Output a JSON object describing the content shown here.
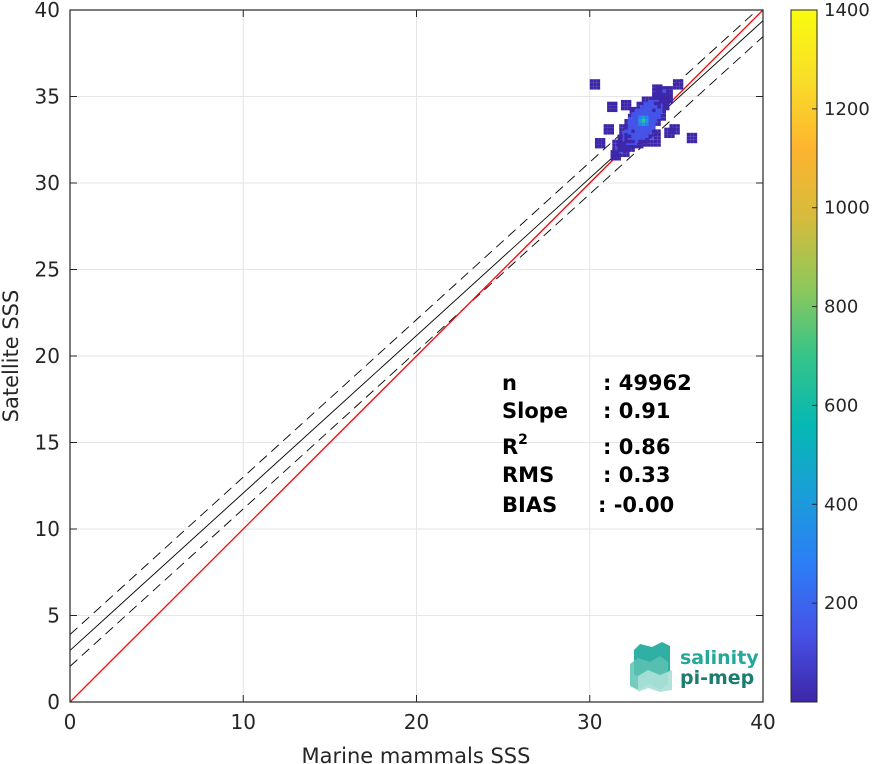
{
  "chart_data": {
    "type": "scatter",
    "subtype": "2d-density-histogram",
    "xlabel": "Marine mammals SSS",
    "ylabel": "Satellite SSS",
    "xlim": [
      0,
      40
    ],
    "ylim": [
      0,
      40
    ],
    "xticks": [
      0,
      10,
      20,
      30,
      40
    ],
    "yticks": [
      0,
      5,
      10,
      15,
      20,
      25,
      30,
      35,
      40
    ],
    "grid": true,
    "colorbar": {
      "range": [
        0,
        1400
      ],
      "ticks": [
        200,
        400,
        600,
        800,
        1000,
        1200,
        1400
      ],
      "colormap": "parula",
      "colors": [
        "#3e26a8",
        "#4653e8",
        "#2c7ef7",
        "#1a9ed9",
        "#06b8b3",
        "#35c489",
        "#8fc85a",
        "#d6bb3c",
        "#fdb42f",
        "#f9de29",
        "#f9fb0e"
      ]
    },
    "density_points": [
      {
        "x": 35.0,
        "y": 35.6,
        "count": 40
      },
      {
        "x": 34.2,
        "y": 35.0,
        "count": 120
      },
      {
        "x": 34.0,
        "y": 34.6,
        "count": 220
      },
      {
        "x": 33.6,
        "y": 34.2,
        "count": 380
      },
      {
        "x": 33.3,
        "y": 33.9,
        "count": 520
      },
      {
        "x": 33.0,
        "y": 33.5,
        "count": 700
      },
      {
        "x": 32.8,
        "y": 33.2,
        "count": 620
      },
      {
        "x": 32.6,
        "y": 32.9,
        "count": 480
      },
      {
        "x": 32.3,
        "y": 32.6,
        "count": 320
      },
      {
        "x": 32.0,
        "y": 32.2,
        "count": 200
      },
      {
        "x": 31.7,
        "y": 31.9,
        "count": 120
      },
      {
        "x": 31.4,
        "y": 31.5,
        "count": 60
      },
      {
        "x": 32.0,
        "y": 34.4,
        "count": 30
      },
      {
        "x": 31.2,
        "y": 34.3,
        "count": 20
      },
      {
        "x": 31.0,
        "y": 33.0,
        "count": 15
      },
      {
        "x": 34.5,
        "y": 32.8,
        "count": 40
      },
      {
        "x": 34.8,
        "y": 33.0,
        "count": 25
      },
      {
        "x": 33.5,
        "y": 32.5,
        "count": 90
      },
      {
        "x": 32.5,
        "y": 34.0,
        "count": 80
      },
      {
        "x": 33.8,
        "y": 35.3,
        "count": 40
      },
      {
        "x": 35.8,
        "y": 32.5,
        "count": 10
      },
      {
        "x": 30.2,
        "y": 35.6,
        "count": 8
      },
      {
        "x": 30.5,
        "y": 32.2,
        "count": 10
      }
    ],
    "lines": {
      "identity": {
        "slope": 1.0,
        "intercept": 0.0,
        "color": "#ff0000"
      },
      "regression": {
        "slope": 0.91,
        "intercept": 2.98,
        "color": "#000000"
      },
      "regression_plus": {
        "slope": 0.91,
        "intercept": 3.9,
        "color": "#000000",
        "style": "dashed"
      },
      "regression_minus": {
        "slope": 0.91,
        "intercept": 2.06,
        "color": "#000000",
        "style": "dashed"
      }
    }
  },
  "stats": {
    "n_label": "n",
    "n_value": ": 49962",
    "slope_label": "Slope",
    "slope_value": ": 0.91",
    "r2_label": "R",
    "r2_sup": "2",
    "r2_value": ": 0.86",
    "rms_label": "RMS",
    "rms_value": ": 0.33",
    "bias_label": "BIAS",
    "bias_value": ": -0.00"
  },
  "logo": {
    "line1": "salinity",
    "line2": "pi-mep",
    "color": "#1aa79b",
    "text_color": "#22a99a"
  }
}
